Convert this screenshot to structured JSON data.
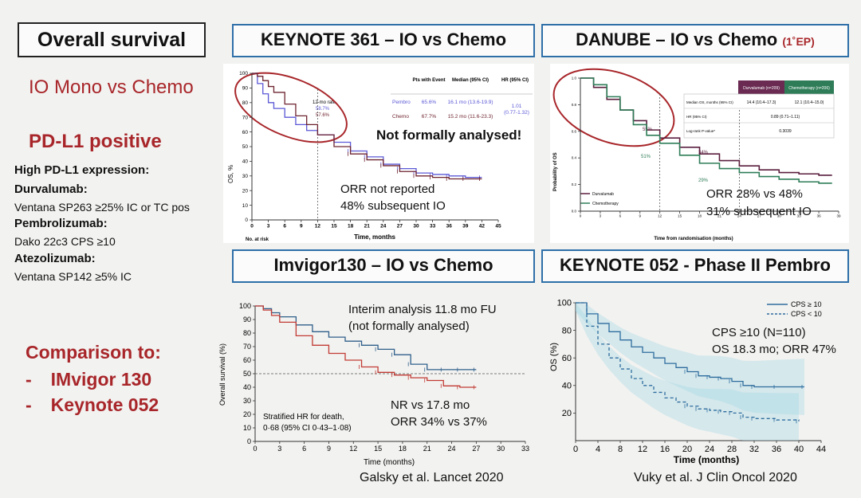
{
  "title": "Overall survival",
  "left": {
    "subtitle1": "IO Mono vs Chemo",
    "subtitle2": "PD-L1 positive",
    "high_label": "High PD-L1 expression:",
    "durva_label": "Durvalumab:",
    "durva_assay": "Ventana SP263 ≥25% IC or TC pos",
    "pembro_label": "Pembrolizumab:",
    "pembro_assay": "Dako 22c3 CPS ≥10",
    "atezo_label": "Atezolizumab:",
    "atezo_assay": "Ventana SP142 ≥5% IC",
    "comparison_label": "Comparison to:",
    "comparison_items": [
      "IMvigor 130",
      "Keynote 052"
    ],
    "dash": "-"
  },
  "panels": {
    "keynote361": {
      "title": "KEYNOTE 361 – IO vs Chemo",
      "y_label": "OS, %",
      "x_label": "Time, months",
      "at_risk": "No. at risk",
      "rate_label": "12-mo rate",
      "rate1": "58.7%",
      "rate2": "57.6%",
      "table_headers": [
        "Pts with Event",
        "Median (95% CI)",
        "HR (95% CI)"
      ],
      "table_rows": [
        {
          "arm": "Pembro",
          "event": "65.6%",
          "median": "16.1 mo (13.6-19.9)"
        },
        {
          "arm": "Chemo",
          "event": "67.7%",
          "median": "15.2 mo (11.6-23.3)"
        }
      ],
      "hr": "1.01",
      "hr_ci": "(0.77-1.32)",
      "not_analysed": "Not formally analysed!",
      "note1": "ORR not reported",
      "note2": "48% subsequent IO"
    },
    "danube": {
      "title": "DANUBE – IO vs Chemo",
      "ep_label": "(1˚EP)",
      "y_label": "Probability of OS",
      "x_label": "Time from randomisation (months)",
      "col_headers": [
        "Durvalumab (n=209)",
        "Chemotherapy (n=206)"
      ],
      "rows": [
        {
          "label": "Median OS, months (95% CI)",
          "a": "14.4 (10.4–17.3)",
          "b": "12.1 (10.4–15.0)"
        },
        {
          "label": "HR (95% CI)",
          "v": "0.89 (0.71–1.11)"
        },
        {
          "label": "Log-rank P-value*",
          "v": "0.3039"
        }
      ],
      "pct_labels": [
        "55%",
        "51%",
        "34%",
        "29%"
      ],
      "legend": [
        "Durvalumab",
        "Chemotherapy"
      ],
      "note1": "ORR 28% vs 48%",
      "note2": "31% subsequent IO"
    },
    "imvigor130": {
      "title": "Imvigor130 – IO vs Chemo",
      "y_label": "Overall survival (%)",
      "x_label": "Time (months)",
      "note_top1": "Interim analysis 11.8 mo FU",
      "note_top2": "(not formally analysed)",
      "hr_text1": "Stratified HR for death,",
      "hr_text2": "0·68 (95% CI 0·43–1·08)",
      "note1": "NR vs 17.8 mo",
      "note2": "ORR 34% vs 37%",
      "citation": "Galsky et al. Lancet 2020"
    },
    "keynote052": {
      "title": "KEYNOTE 052  - Phase II Pembro",
      "y_label": "OS (%)",
      "x_label": "Time (months)",
      "legend": [
        "CPS ≥ 10",
        "CPS < 10"
      ],
      "note1": "CPS ≥10 (N=110)",
      "note2": "OS 18.3 mo; ORR 47%",
      "citation": "Vuky et al. J Clin Oncol 2020"
    }
  },
  "colors": {
    "frame": "#2e6fa8",
    "red": "#a8262a",
    "pembro": "#5b58d6",
    "chemo361": "#6e2430",
    "durva": "#5a1f3e",
    "chemo_danube": "#2f7d58",
    "imv_blue": "#2f5f8a",
    "imv_red": "#c23b34",
    "kn052": "#2f6d9e"
  },
  "chart_data": [
    {
      "id": "keynote361",
      "type": "line",
      "title": "KEYNOTE 361 – IO vs Chemo",
      "xlabel": "Time, months",
      "ylabel": "OS, %",
      "xlim": [
        0,
        45
      ],
      "ylim": [
        0,
        100
      ],
      "x_ticks": [
        0,
        3,
        6,
        9,
        12,
        15,
        18,
        21,
        24,
        27,
        30,
        33,
        36,
        39,
        42,
        45
      ],
      "y_ticks": [
        0,
        10,
        20,
        30,
        40,
        50,
        60,
        70,
        80,
        90,
        100
      ],
      "series": [
        {
          "name": "Pembro",
          "x": [
            0,
            1,
            2,
            3,
            4,
            6,
            8,
            10,
            12,
            15,
            18,
            21,
            24,
            27,
            30,
            33,
            36,
            39,
            42
          ],
          "y": [
            100,
            93,
            86,
            80,
            76,
            70,
            65,
            61,
            58,
            53,
            47,
            43,
            38,
            35,
            32,
            31,
            30,
            29,
            29
          ]
        },
        {
          "name": "Chemo",
          "x": [
            0,
            1,
            2,
            3,
            4,
            6,
            8,
            10,
            12,
            15,
            18,
            21,
            24,
            27,
            30,
            33,
            36,
            39,
            42
          ],
          "y": [
            100,
            98,
            95,
            91,
            87,
            79,
            71,
            65,
            58,
            50,
            45,
            41,
            37,
            33,
            30,
            29,
            28,
            28,
            28
          ]
        }
      ]
    },
    {
      "id": "danube",
      "type": "line",
      "title": "DANUBE – IO vs Chemo",
      "xlabel": "Time from randomisation (months)",
      "ylabel": "Probability of OS",
      "xlim": [
        0,
        39
      ],
      "ylim": [
        0,
        1.0
      ],
      "x_ticks": [
        0,
        3,
        6,
        9,
        12,
        15,
        18,
        21,
        24,
        27,
        30,
        33,
        36,
        39
      ],
      "y_ticks": [
        0,
        0.2,
        0.4,
        0.6,
        0.8,
        1.0
      ],
      "series": [
        {
          "name": "Durvalumab",
          "x": [
            0,
            2,
            4,
            6,
            8,
            10,
            12,
            15,
            18,
            21,
            24,
            27,
            30,
            33,
            36,
            38
          ],
          "y": [
            1.0,
            0.93,
            0.84,
            0.76,
            0.68,
            0.61,
            0.55,
            0.48,
            0.43,
            0.38,
            0.34,
            0.31,
            0.29,
            0.28,
            0.27,
            0.27
          ]
        },
        {
          "name": "Chemotherapy",
          "x": [
            0,
            2,
            4,
            6,
            8,
            10,
            12,
            15,
            18,
            21,
            24,
            27,
            30,
            33,
            36,
            38
          ],
          "y": [
            1.0,
            0.95,
            0.86,
            0.76,
            0.65,
            0.57,
            0.51,
            0.42,
            0.36,
            0.32,
            0.29,
            0.26,
            0.24,
            0.22,
            0.21,
            0.21
          ]
        }
      ]
    },
    {
      "id": "imvigor130",
      "type": "line",
      "title": "Imvigor130 – IO vs Chemo",
      "xlabel": "Time (months)",
      "ylabel": "Overall survival (%)",
      "xlim": [
        0,
        33
      ],
      "ylim": [
        0,
        100
      ],
      "x_ticks": [
        0,
        3,
        6,
        9,
        12,
        15,
        18,
        21,
        24,
        27,
        30,
        33
      ],
      "y_ticks": [
        0,
        10,
        20,
        30,
        40,
        50,
        60,
        70,
        80,
        90,
        100
      ],
      "reference_line": 50,
      "series": [
        {
          "name": "IO",
          "x": [
            0,
            1,
            2,
            3,
            5,
            7,
            9,
            11,
            13,
            15,
            17,
            19,
            21,
            23,
            25,
            27
          ],
          "y": [
            100,
            98,
            95,
            92,
            86,
            81,
            77,
            74,
            71,
            68,
            64,
            57,
            53,
            53,
            53,
            53
          ]
        },
        {
          "name": "Chemo",
          "x": [
            0,
            1,
            2,
            3,
            5,
            7,
            9,
            11,
            13,
            15,
            17,
            19,
            21,
            23,
            25,
            27
          ],
          "y": [
            100,
            97,
            93,
            88,
            78,
            71,
            65,
            60,
            55,
            51,
            49,
            47,
            45,
            41,
            40,
            40
          ]
        }
      ]
    },
    {
      "id": "keynote052",
      "type": "line",
      "title": "KEYNOTE 052  - Phase II Pembro",
      "xlabel": "Time (months)",
      "ylabel": "OS (%)",
      "xlim": [
        0,
        44
      ],
      "ylim": [
        0,
        100
      ],
      "x_ticks": [
        0,
        4,
        8,
        12,
        16,
        20,
        24,
        28,
        32,
        36,
        40,
        44
      ],
      "y_ticks": [
        20,
        40,
        60,
        80,
        100
      ],
      "series": [
        {
          "name": "CPS ≥ 10",
          "x": [
            0,
            2,
            4,
            6,
            8,
            10,
            12,
            14,
            16,
            18,
            20,
            22,
            24,
            26,
            28,
            30,
            32,
            36,
            41
          ],
          "y": [
            100,
            92,
            85,
            79,
            73,
            68,
            64,
            60,
            56,
            53,
            50,
            47,
            46,
            45,
            43,
            40,
            39,
            39,
            39
          ]
        },
        {
          "name": "CPS < 10",
          "x": [
            0,
            2,
            4,
            6,
            8,
            10,
            12,
            14,
            16,
            18,
            20,
            22,
            24,
            26,
            28,
            30,
            32,
            36,
            40
          ],
          "y": [
            100,
            83,
            70,
            60,
            52,
            45,
            40,
            35,
            31,
            28,
            25,
            23,
            22,
            21,
            20,
            17,
            16,
            15,
            14
          ]
        }
      ]
    }
  ]
}
